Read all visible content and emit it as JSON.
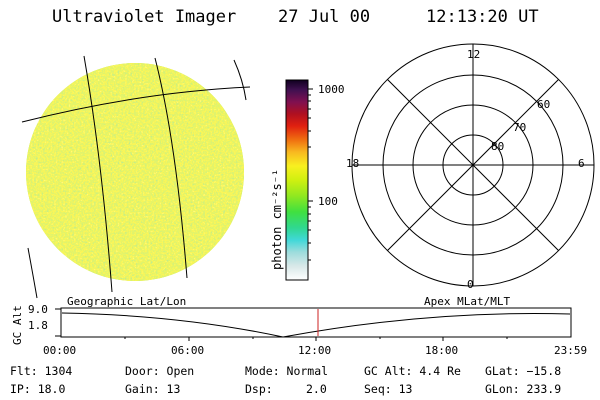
{
  "header": {
    "title": "Ultraviolet Imager",
    "date": "27 Jul 00",
    "time": "12:13:20 UT"
  },
  "colorbar": {
    "unit_label": "photon cm⁻²s⁻¹",
    "ticks": [
      "1000",
      "100"
    ]
  },
  "polar": {
    "labels": {
      "top": "12",
      "left": "18",
      "right": "6",
      "bottom": "0"
    },
    "rings": [
      "60",
      "70",
      "80"
    ]
  },
  "altplot": {
    "left_title": "Geographic Lat/Lon",
    "right_title": "Apex MLat/MLT",
    "ylabel": "GC Alt",
    "ytick_top": "9.0",
    "ytick_bottom": "1.8",
    "xticks": [
      "00:00",
      "06:00",
      "12:00",
      "18:00",
      "23:59"
    ],
    "marker_color": "#cc2222"
  },
  "info": {
    "flt": "Flt: 1304",
    "ip": "IP: 18.0",
    "door": "Door: Open",
    "gain": "Gain: 13",
    "mode": "Mode: Normal",
    "dsp_label": "Dsp:",
    "dsp_value": "2.0",
    "gcalt": "GC Alt: 4.4 Re",
    "seq": "Seq: 13",
    "glat": "GLat: −15.8",
    "glon": "GLon: 233.9"
  }
}
